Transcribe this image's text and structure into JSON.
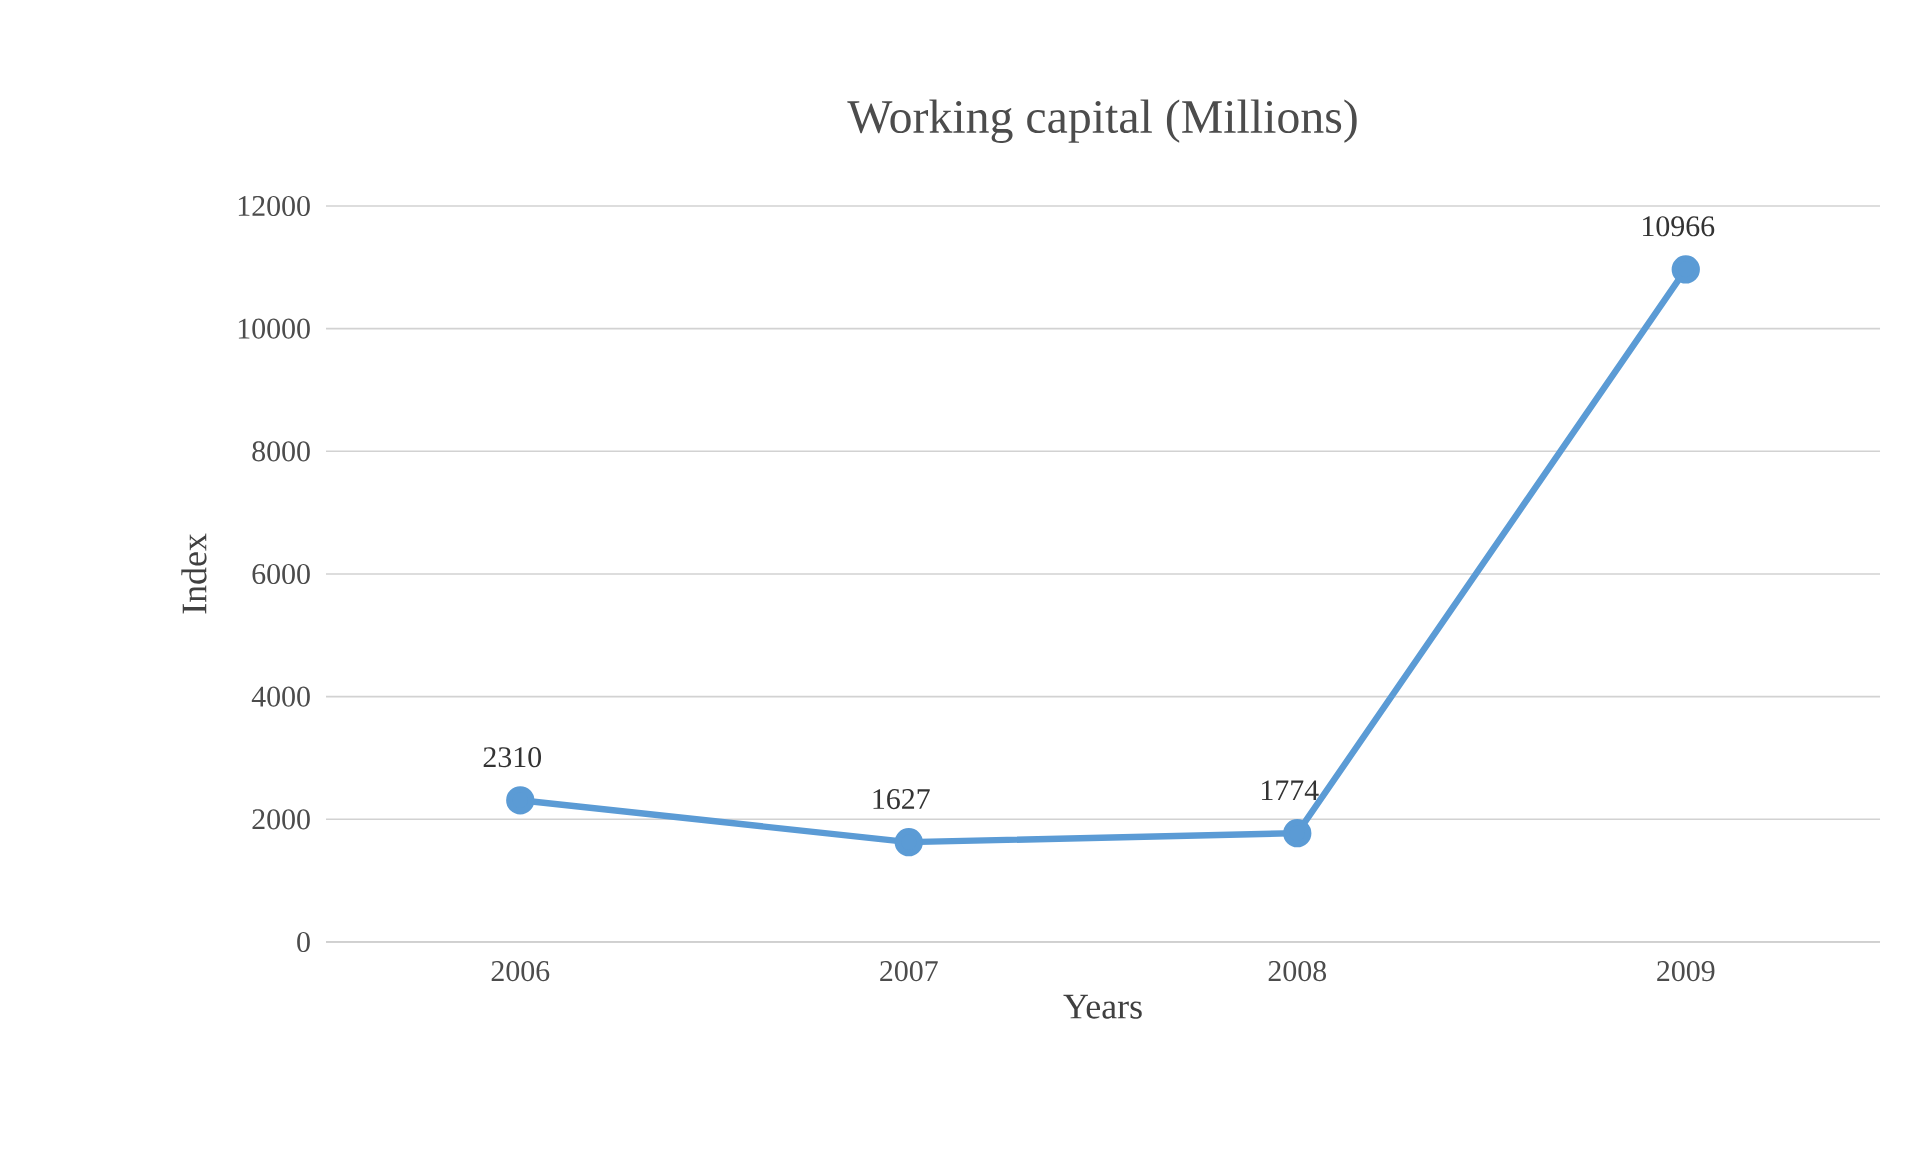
{
  "chart_data": {
    "type": "line",
    "title": "Working capital (Millions)",
    "xlabel": "Years",
    "ylabel": "Index",
    "categories": [
      "2006",
      "2007",
      "2008",
      "2009"
    ],
    "series": [
      {
        "color": "#5b9bd5",
        "values": [
          2310,
          1627,
          1774,
          10966
        ]
      }
    ],
    "ylim": [
      0,
      12000
    ],
    "yticks": [
      0,
      2000,
      4000,
      6000,
      8000,
      10000,
      12000
    ],
    "grid": "y",
    "marker": "circle",
    "line_style": "solid",
    "data_labels": true
  }
}
